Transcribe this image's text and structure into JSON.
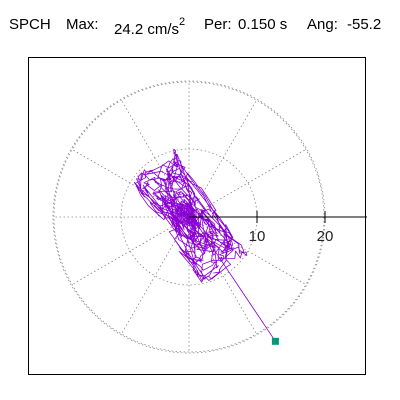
{
  "header": {
    "station": "SPCH",
    "max_label": "Max:",
    "max_value": "24.2 cm/s",
    "max_exponent": "2",
    "per_label": "Per:",
    "per_value": "0.150 s",
    "ang_label": "Ang:",
    "ang_value": "-55.2"
  },
  "polar_plot": {
    "ring_labels": [
      "10",
      "20"
    ],
    "ring_values": [
      10,
      20
    ],
    "spoke_count": 12,
    "grid_style": "dotted",
    "trace_color": "#8a00d4",
    "end_marker_color": "#009977",
    "max_value": 24.2,
    "max_angle_deg": -55.2
  },
  "colors": {
    "grid": "#888888",
    "axis": "#000000",
    "trace": "#8a00d4",
    "marker": "#009977"
  }
}
